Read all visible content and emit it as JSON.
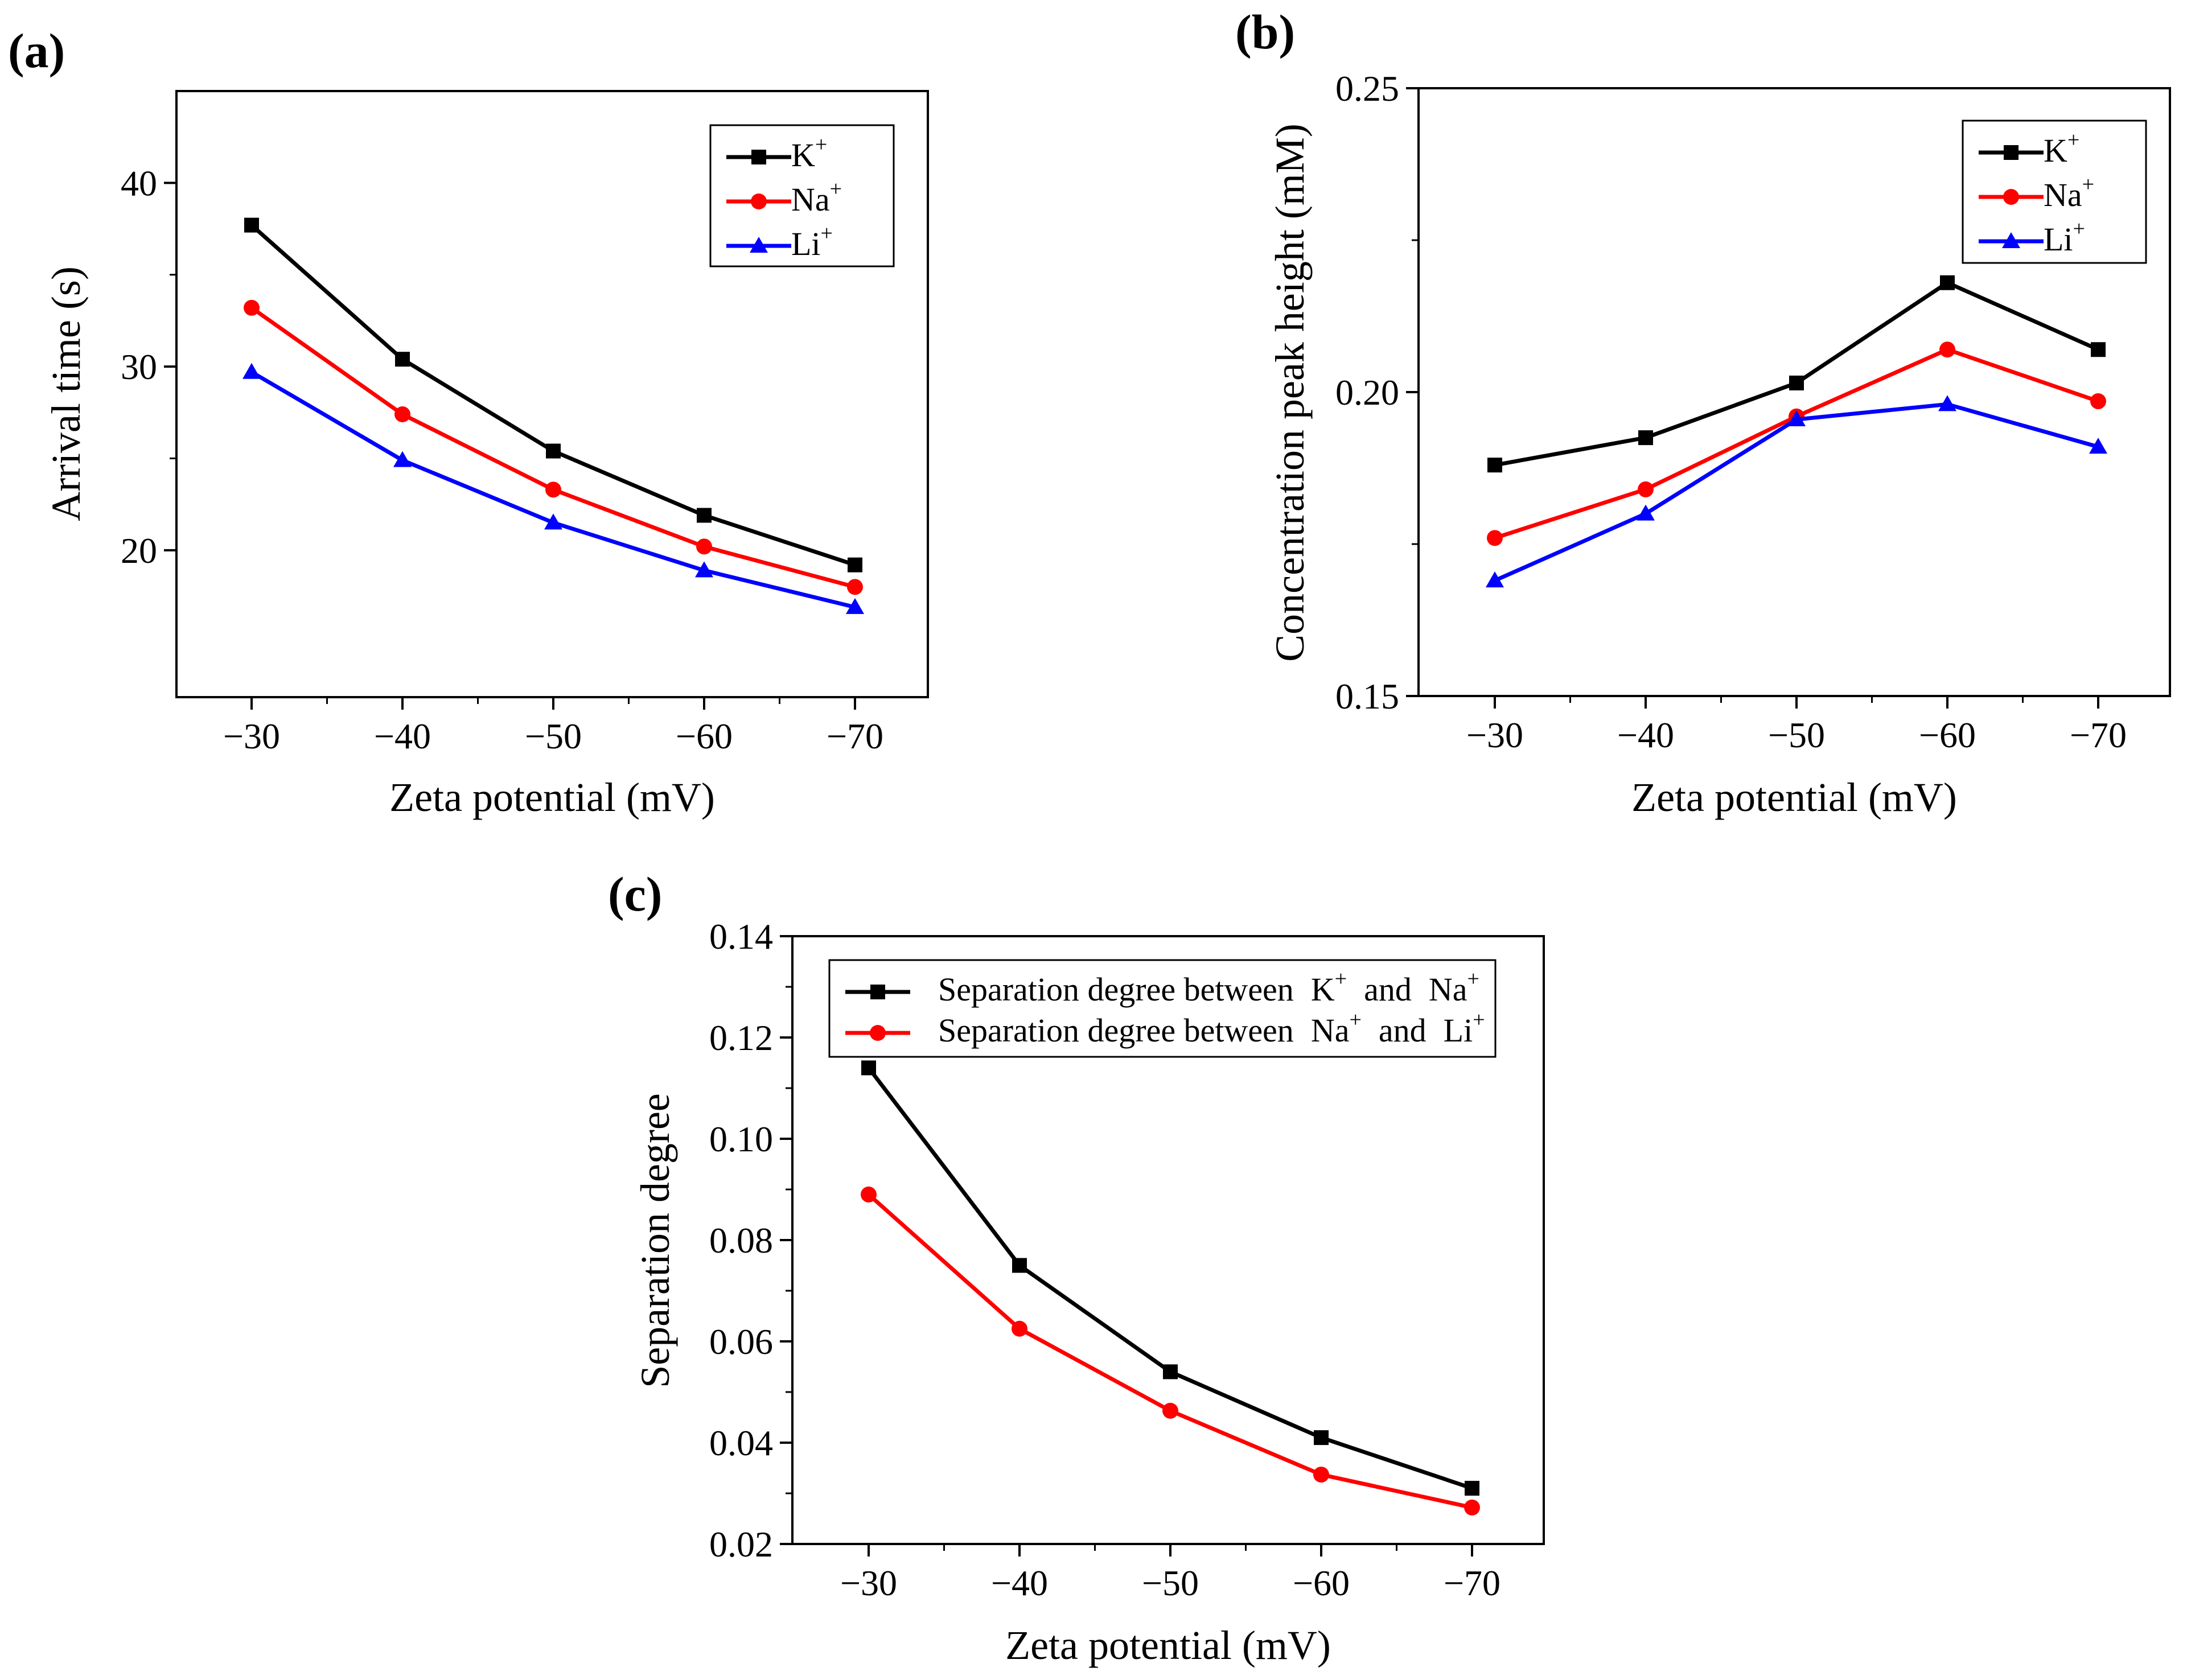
{
  "colors": {
    "K": "#000000",
    "Na": "#ff0000",
    "Li": "#0000ff"
  },
  "chart_data": [
    {
      "panel": "(a)",
      "type": "line",
      "title": "",
      "xlabel": "Zeta potential (mV)",
      "ylabel": "Arrival time (s)",
      "x": [
        -30,
        -40,
        -50,
        -60,
        -70
      ],
      "xticks": [
        "−30",
        "−40",
        "−50",
        "−60",
        "−70"
      ],
      "ylim": [
        12,
        45
      ],
      "yticks": [
        "20",
        "30",
        "40"
      ],
      "ytick_values": [
        20,
        30,
        40
      ],
      "legend_position": "top-right",
      "series": [
        {
          "name": "K",
          "charge": "+",
          "color": "#000000",
          "marker": "square",
          "values": [
            37.7,
            30.4,
            25.4,
            21.9,
            19.2
          ]
        },
        {
          "name": "Na",
          "charge": "+",
          "color": "#ff0000",
          "marker": "circle",
          "values": [
            33.2,
            27.4,
            23.3,
            20.2,
            18.0
          ]
        },
        {
          "name": "Li",
          "charge": "+",
          "color": "#0000ff",
          "marker": "triangle",
          "values": [
            29.7,
            24.9,
            21.5,
            18.9,
            16.9
          ]
        }
      ]
    },
    {
      "panel": "(b)",
      "type": "line",
      "title": "",
      "xlabel": "Zeta potential (mV)",
      "ylabel": "Concentration peak height (mM)",
      "x": [
        -30,
        -40,
        -50,
        -60,
        -70
      ],
      "xticks": [
        "−30",
        "−40",
        "−50",
        "−60",
        "−70"
      ],
      "ylim": [
        0.15,
        0.25
      ],
      "yticks": [
        "0.15",
        "0.20",
        "0.25"
      ],
      "ytick_values": [
        0.15,
        0.2,
        0.25
      ],
      "legend_position": "top-right",
      "series": [
        {
          "name": "K",
          "charge": "+",
          "color": "#000000",
          "marker": "square",
          "values": [
            0.188,
            0.1925,
            0.2015,
            0.218,
            0.207
          ]
        },
        {
          "name": "Na",
          "charge": "+",
          "color": "#ff0000",
          "marker": "circle",
          "values": [
            0.176,
            0.184,
            0.196,
            0.207,
            0.1985
          ]
        },
        {
          "name": "Li",
          "charge": "+",
          "color": "#0000ff",
          "marker": "triangle",
          "values": [
            0.169,
            0.18,
            0.1955,
            0.198,
            0.191
          ]
        }
      ]
    },
    {
      "panel": "(c)",
      "type": "line",
      "title": "",
      "xlabel": "Zeta potential (mV)",
      "ylabel": "Separation degree",
      "x": [
        -30,
        -40,
        -50,
        -60,
        -70
      ],
      "xticks": [
        "−30",
        "−40",
        "−50",
        "−60",
        "−70"
      ],
      "ylim": [
        0.02,
        0.14
      ],
      "yticks": [
        "0.02",
        "0.04",
        "0.06",
        "0.08",
        "0.10",
        "0.12",
        "0.14"
      ],
      "ytick_values": [
        0.02,
        0.04,
        0.06,
        0.08,
        0.1,
        0.12,
        0.14
      ],
      "legend_position": "top",
      "series": [
        {
          "name": "Separation degree between",
          "ion1": "K",
          "ion2": "Na",
          "charge": "+",
          "and": "and",
          "color": "#000000",
          "marker": "square",
          "values": [
            0.114,
            0.075,
            0.054,
            0.041,
            0.031
          ]
        },
        {
          "name": "Separation degree between",
          "ion1": "Na",
          "ion2": "Li",
          "charge": "+",
          "and": "and",
          "color": "#ff0000",
          "marker": "circle",
          "values": [
            0.089,
            0.0625,
            0.0463,
            0.0337,
            0.0272
          ]
        }
      ]
    }
  ]
}
